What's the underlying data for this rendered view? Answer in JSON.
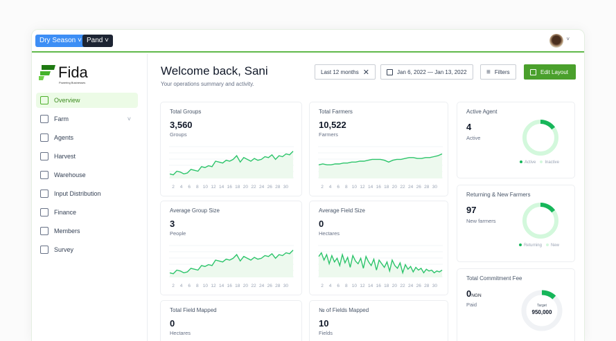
{
  "topbar": {
    "season": "Dry Season",
    "org": "Pand",
    "avatar": "user-avatar"
  },
  "brand": {
    "name": "Fida",
    "tagline": "Powering Businesses"
  },
  "sidebar": {
    "items": [
      {
        "label": "Overview",
        "icon": "grid-icon",
        "active": true
      },
      {
        "label": "Farm",
        "icon": "leaf-icon",
        "expandable": true
      },
      {
        "label": "Agents",
        "icon": "user-icon"
      },
      {
        "label": "Harvest",
        "icon": "box-icon"
      },
      {
        "label": "Warehouse",
        "icon": "layers-icon"
      },
      {
        "label": "Input Distribution",
        "icon": "package-icon"
      },
      {
        "label": "Finance",
        "icon": "card-icon"
      },
      {
        "label": "Members",
        "icon": "users-icon"
      },
      {
        "label": "Survey",
        "icon": "clipboard-icon"
      }
    ]
  },
  "header": {
    "title": "Welcome back, Sani",
    "subtitle": "Your operations summary and activity.",
    "period": "Last 12 months",
    "date_range": "Jan 6, 2022 — Jan 13, 2022",
    "filters": "Filters",
    "edit_layout": "Edit Layout"
  },
  "colors": {
    "accent": "#4aa02c",
    "line": "#2cc46a",
    "donut_light": "#d3f8dc",
    "donut_dark": "#17b65a"
  },
  "x_ticks": [
    "2",
    "4",
    "6",
    "8",
    "10",
    "12",
    "14",
    "16",
    "18",
    "20",
    "22",
    "24",
    "26",
    "28",
    "30"
  ],
  "cards": [
    {
      "label": "Total Groups",
      "value": "3,560",
      "unit": "Groups",
      "series": [
        30,
        29,
        33,
        32,
        30,
        31,
        35,
        34,
        33,
        38,
        37,
        39,
        38,
        44,
        43,
        42,
        45,
        44,
        46,
        50,
        43,
        48,
        46,
        44,
        47,
        45,
        46,
        49,
        48,
        51,
        46,
        50,
        49,
        52,
        51,
        55
      ]
    },
    {
      "label": "Total Farmers",
      "value": "10,522",
      "unit": "Farmers",
      "series": [
        40,
        41,
        40,
        40,
        41,
        41,
        42,
        42,
        43,
        43,
        44,
        44,
        45,
        46,
        46,
        46,
        45,
        43,
        45,
        46,
        46,
        47,
        48,
        48,
        47,
        47,
        48,
        48,
        49,
        50,
        52
      ]
    },
    {
      "label": "Average Group Size",
      "value": "3",
      "unit": "People",
      "series": [
        30,
        29,
        33,
        32,
        30,
        31,
        35,
        34,
        33,
        38,
        37,
        39,
        38,
        44,
        43,
        42,
        45,
        44,
        46,
        50,
        43,
        48,
        46,
        44,
        47,
        45,
        46,
        49,
        48,
        51,
        46,
        50,
        49,
        52,
        51,
        55
      ]
    },
    {
      "label": "Average Field Size",
      "value": "0",
      "unit": "Hectares",
      "series": [
        48,
        52,
        44,
        50,
        40,
        49,
        42,
        46,
        38,
        50,
        41,
        47,
        36,
        49,
        43,
        40,
        46,
        35,
        48,
        42,
        38,
        45,
        33,
        44,
        40,
        36,
        42,
        32,
        44,
        38,
        35,
        41,
        30,
        39,
        34,
        37,
        31,
        36,
        33,
        35,
        30,
        34,
        32,
        33,
        30,
        32,
        31,
        33
      ]
    },
    {
      "label": "Total Field Mapped",
      "value": "0",
      "unit": "Hectares"
    },
    {
      "label": "№ of Fields Mapped",
      "value": "10",
      "unit": "Fields"
    }
  ],
  "side_cards": [
    {
      "label": "Active Agent",
      "value": "4",
      "unit": "Active",
      "fraction": 0.15,
      "legend": [
        "Active",
        "Inactive"
      ]
    },
    {
      "label": "Returning & New Farmers",
      "value": "97",
      "unit": "New farmers",
      "fraction": 0.15,
      "legend": [
        "Returning",
        "New"
      ]
    },
    {
      "label": "Total Commitment Fee",
      "value": "0",
      "currency": "NGN",
      "unit": "Paid",
      "fraction": 0.12,
      "target_label": "Target",
      "target": "950,000"
    }
  ]
}
